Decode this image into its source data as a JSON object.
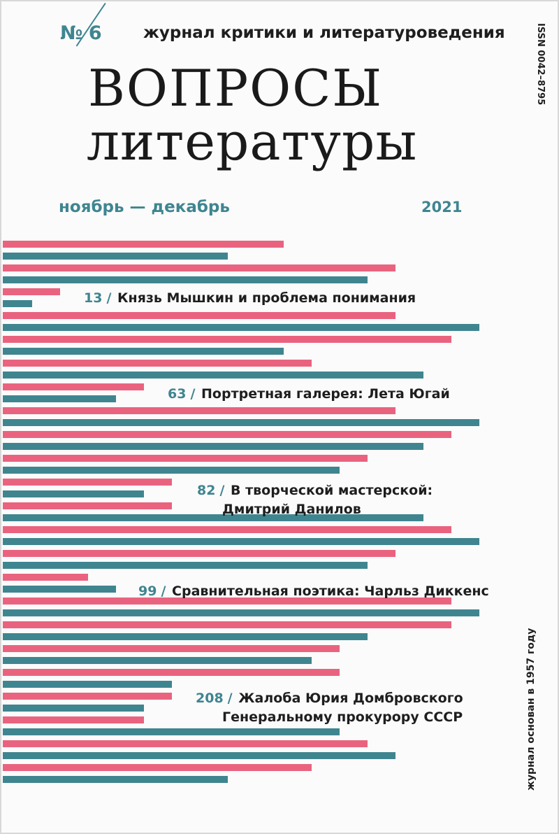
{
  "header": {
    "issue_number": "№ 6",
    "subtitle": "журнал критики и литературоведения",
    "issn": "ISSN 0042–8795"
  },
  "title": {
    "line1": "ВОПРОСЫ",
    "line2": "литературы"
  },
  "period": "ноябрь — декабрь",
  "year": "2021",
  "colors": {
    "pink": "#e9637f",
    "teal": "#3f8590",
    "text": "#1e1e1e"
  },
  "contents": [
    {
      "page": "13",
      "slash": "/",
      "title": "Князь Мышкин и проблема понимания",
      "title2": ""
    },
    {
      "page": "63",
      "slash": "/",
      "title": "Портретная галерея: Лета Югай",
      "title2": ""
    },
    {
      "page": "82",
      "slash": "/",
      "title": "В творческой мастерской:",
      "title2": "Дмитрий Данилов"
    },
    {
      "page": "99",
      "slash": "/",
      "title": "Сравнительная поэтика: Чарльз Диккенс",
      "title2": ""
    },
    {
      "page": "208",
      "slash": "/",
      "title": "Жалоба Юрия Домбровского",
      "title2": "Генеральному прокурору СССР"
    }
  ],
  "spine_text": "журнал основан в 1957 году"
}
